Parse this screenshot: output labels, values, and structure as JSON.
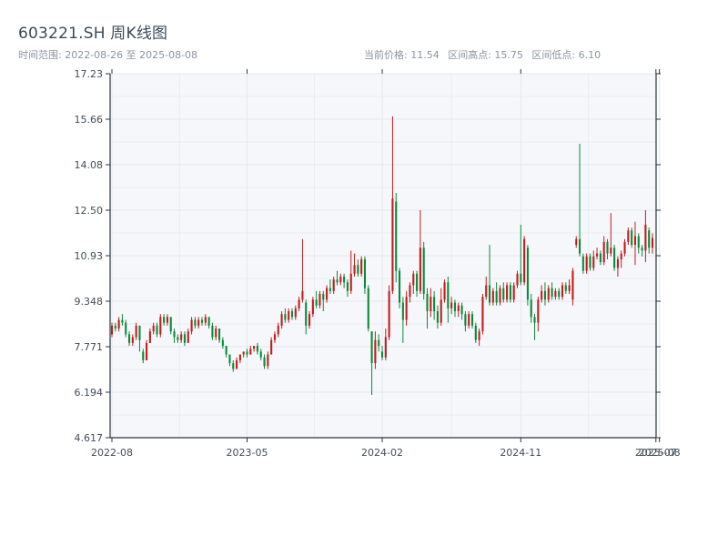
{
  "header": {
    "title": "603221.SH 周K线图",
    "range": "时间范围: 2022-08-26 至 2025-08-08",
    "current_price": "当前价格: 11.54",
    "range_high": "区间高点: 15.75",
    "range_low": "区间低点: 6.10"
  },
  "colors": {
    "up": "#c11d1d",
    "down": "#0b8a3a",
    "plot_bg": "#f5f7fa",
    "grid": "#e3e7ec",
    "axis": "#2b3440"
  },
  "chart_data": {
    "type": "candlestick",
    "title": "603221.SH 周K线图",
    "xlabel": "",
    "ylabel": "",
    "ylim": [
      4.617,
      17.23
    ],
    "yticks": [
      "4.617",
      "6.194",
      "7.771",
      "9.348",
      "10.93",
      "12.50",
      "14.08",
      "15.66",
      "17.23"
    ],
    "xticks": [
      {
        "label": "2022-08",
        "week": 0
      },
      {
        "label": "2023-05",
        "week": 39
      },
      {
        "label": "2024-02",
        "week": 78
      },
      {
        "label": "2024-11",
        "week": 118
      },
      {
        "label": "2025-07",
        "week": 157
      },
      {
        "label": "2025-08",
        "week": 158
      }
    ],
    "grid": true,
    "columns": [
      "open",
      "close",
      "high",
      "low"
    ],
    "candles": [
      [
        8.2,
        8.5,
        8.6,
        8.1
      ],
      [
        8.5,
        8.4,
        8.6,
        8.3
      ],
      [
        8.4,
        8.7,
        8.8,
        8.3
      ],
      [
        8.7,
        8.6,
        8.9,
        8.5
      ],
      [
        8.6,
        8.2,
        8.7,
        8.1
      ],
      [
        8.2,
        7.9,
        8.3,
        7.8
      ],
      [
        7.9,
        8.1,
        8.2,
        7.8
      ],
      [
        8.1,
        8.5,
        8.6,
        8.0
      ],
      [
        8.5,
        8.0,
        8.5,
        7.6
      ],
      [
        7.6,
        7.3,
        7.7,
        7.2
      ],
      [
        7.3,
        7.9,
        8.0,
        7.3
      ],
      [
        7.9,
        8.3,
        8.4,
        7.9
      ],
      [
        8.3,
        8.5,
        8.6,
        8.2
      ],
      [
        8.5,
        8.2,
        8.6,
        8.1
      ],
      [
        8.2,
        8.8,
        8.9,
        8.1
      ],
      [
        8.8,
        8.6,
        8.9,
        8.5
      ],
      [
        8.6,
        8.8,
        8.9,
        8.5
      ],
      [
        8.8,
        8.3,
        8.8,
        8.2
      ],
      [
        8.3,
        8.1,
        8.4,
        7.9
      ],
      [
        8.1,
        8.0,
        8.2,
        7.9
      ],
      [
        8.0,
        8.2,
        8.3,
        7.9
      ],
      [
        8.2,
        7.9,
        8.3,
        7.8
      ],
      [
        7.9,
        8.3,
        8.4,
        7.9
      ],
      [
        8.3,
        8.7,
        8.8,
        8.2
      ],
      [
        8.7,
        8.5,
        8.8,
        8.4
      ],
      [
        8.5,
        8.7,
        8.8,
        8.4
      ],
      [
        8.7,
        8.6,
        8.8,
        8.5
      ],
      [
        8.6,
        8.8,
        8.9,
        8.5
      ],
      [
        8.8,
        8.5,
        8.8,
        8.4
      ],
      [
        8.5,
        8.1,
        8.6,
        8.0
      ],
      [
        8.1,
        8.4,
        8.5,
        8.0
      ],
      [
        8.4,
        8.0,
        8.4,
        7.9
      ],
      [
        8.0,
        7.8,
        8.1,
        7.7
      ],
      [
        7.8,
        7.5,
        7.8,
        7.4
      ],
      [
        7.5,
        7.2,
        7.5,
        7.1
      ],
      [
        7.2,
        7.0,
        7.3,
        6.9
      ],
      [
        7.0,
        7.3,
        7.4,
        7.0
      ],
      [
        7.3,
        7.5,
        7.5,
        7.2
      ],
      [
        7.5,
        7.6,
        7.6,
        7.4
      ],
      [
        7.6,
        7.5,
        7.7,
        7.4
      ],
      [
        7.5,
        7.7,
        7.8,
        7.5
      ],
      [
        7.7,
        7.8,
        7.8,
        7.6
      ],
      [
        7.8,
        7.6,
        7.9,
        7.5
      ],
      [
        7.6,
        7.4,
        7.7,
        7.3
      ],
      [
        7.4,
        7.1,
        7.5,
        7.0
      ],
      [
        7.1,
        7.5,
        7.6,
        7.0
      ],
      [
        7.5,
        8.0,
        8.1,
        7.5
      ],
      [
        8.0,
        8.2,
        8.3,
        7.9
      ],
      [
        8.2,
        8.5,
        8.6,
        8.1
      ],
      [
        8.5,
        8.9,
        9.0,
        8.4
      ],
      [
        8.9,
        8.7,
        9.1,
        8.6
      ],
      [
        8.7,
        9.0,
        9.1,
        8.6
      ],
      [
        9.0,
        8.8,
        9.1,
        8.7
      ],
      [
        8.8,
        9.1,
        9.2,
        8.7
      ],
      [
        9.1,
        9.4,
        9.5,
        9.0
      ],
      [
        9.4,
        9.7,
        11.5,
        9.3
      ],
      [
        9.3,
        8.5,
        9.4,
        8.2
      ],
      [
        8.5,
        8.9,
        9.0,
        8.4
      ],
      [
        8.9,
        9.4,
        9.5,
        8.8
      ],
      [
        9.4,
        9.2,
        9.7,
        9.1
      ],
      [
        9.2,
        9.6,
        9.7,
        9.1
      ],
      [
        9.6,
        9.4,
        9.7,
        9.0
      ],
      [
        9.4,
        9.8,
        9.9,
        9.3
      ],
      [
        9.8,
        9.7,
        10.1,
        9.6
      ],
      [
        9.7,
        10.1,
        10.2,
        9.6
      ],
      [
        10.1,
        10.0,
        10.4,
        9.9
      ],
      [
        10.0,
        10.2,
        10.3,
        9.9
      ],
      [
        10.2,
        10.0,
        10.3,
        9.8
      ],
      [
        10.0,
        9.7,
        10.1,
        9.5
      ],
      [
        9.7,
        10.3,
        11.1,
        9.6
      ],
      [
        10.3,
        10.6,
        11.0,
        10.2
      ],
      [
        10.6,
        10.3,
        10.8,
        10.2
      ],
      [
        10.3,
        10.8,
        10.9,
        10.2
      ],
      [
        10.8,
        9.8,
        10.9,
        9.6
      ],
      [
        9.8,
        8.4,
        9.9,
        8.3
      ],
      [
        8.3,
        7.2,
        8.3,
        6.1
      ],
      [
        7.2,
        8.0,
        8.3,
        7.0
      ],
      [
        8.0,
        7.8,
        8.2,
        7.6
      ],
      [
        7.6,
        7.4,
        7.8,
        7.3
      ],
      [
        7.4,
        8.1,
        8.4,
        7.3
      ],
      [
        8.1,
        9.7,
        9.9,
        8.0
      ],
      [
        9.7,
        12.9,
        15.75,
        9.6
      ],
      [
        12.8,
        10.4,
        13.1,
        10.0
      ],
      [
        10.4,
        9.3,
        10.5,
        9.1
      ],
      [
        9.3,
        8.7,
        9.5,
        7.9
      ],
      [
        8.7,
        9.5,
        9.7,
        8.5
      ],
      [
        9.5,
        9.9,
        10.0,
        9.3
      ],
      [
        9.9,
        10.3,
        10.4,
        9.6
      ],
      [
        10.3,
        9.7,
        10.4,
        9.5
      ],
      [
        9.7,
        11.2,
        12.5,
        9.6
      ],
      [
        11.2,
        9.6,
        11.4,
        9.4
      ],
      [
        9.6,
        9.0,
        9.8,
        8.4
      ],
      [
        9.0,
        9.5,
        9.8,
        8.8
      ],
      [
        9.5,
        9.0,
        9.7,
        8.7
      ],
      [
        9.0,
        8.6,
        9.2,
        8.4
      ],
      [
        8.6,
        9.4,
        9.8,
        8.5
      ],
      [
        9.4,
        10.0,
        10.1,
        9.3
      ],
      [
        10.0,
        9.1,
        10.2,
        8.6
      ],
      [
        9.1,
        9.3,
        9.5,
        8.9
      ],
      [
        9.3,
        9.0,
        9.4,
        8.8
      ],
      [
        9.0,
        9.2,
        9.3,
        8.8
      ],
      [
        9.2,
        8.9,
        9.3,
        8.7
      ],
      [
        8.9,
        8.5,
        9.0,
        8.3
      ],
      [
        8.5,
        8.9,
        9.0,
        8.4
      ],
      [
        8.9,
        8.5,
        9.0,
        8.4
      ],
      [
        8.5,
        8.0,
        8.6,
        7.9
      ],
      [
        8.0,
        8.3,
        8.4,
        7.8
      ],
      [
        8.3,
        9.5,
        9.6,
        8.2
      ],
      [
        9.5,
        9.9,
        10.2,
        9.4
      ],
      [
        9.9,
        9.3,
        11.3,
        9.2
      ],
      [
        9.3,
        9.7,
        9.8,
        9.2
      ],
      [
        9.7,
        9.3,
        10.0,
        9.2
      ],
      [
        9.3,
        9.8,
        9.9,
        9.2
      ],
      [
        9.8,
        9.4,
        10.0,
        9.3
      ],
      [
        9.4,
        9.9,
        10.0,
        9.3
      ],
      [
        9.9,
        9.4,
        10.0,
        9.3
      ],
      [
        9.4,
        9.9,
        10.0,
        9.3
      ],
      [
        9.9,
        10.3,
        10.4,
        9.8
      ],
      [
        10.3,
        10.0,
        12.0,
        9.9
      ],
      [
        10.0,
        11.5,
        11.6,
        9.9
      ],
      [
        11.2,
        9.4,
        11.3,
        9.2
      ],
      [
        9.4,
        8.8,
        9.6,
        8.6
      ],
      [
        8.8,
        8.6,
        8.9,
        8.0
      ],
      [
        8.6,
        9.4,
        9.5,
        8.3
      ],
      [
        9.4,
        9.7,
        9.9,
        9.3
      ],
      [
        9.7,
        9.4,
        10.0,
        9.2
      ],
      [
        9.4,
        9.8,
        9.9,
        9.3
      ],
      [
        9.8,
        9.5,
        10.0,
        9.4
      ],
      [
        9.5,
        9.7,
        9.8,
        9.4
      ],
      [
        9.7,
        9.5,
        9.8,
        9.4
      ],
      [
        9.5,
        9.9,
        10.0,
        9.4
      ],
      [
        9.9,
        9.7,
        10.0,
        9.6
      ],
      [
        9.7,
        9.9,
        10.1,
        9.6
      ],
      [
        9.4,
        10.4,
        10.5,
        9.2
      ],
      [
        11.3,
        11.5,
        11.6,
        11.2
      ],
      [
        11.5,
        11.0,
        14.8,
        10.9
      ],
      [
        10.9,
        10.4,
        11.0,
        10.3
      ],
      [
        10.4,
        10.9,
        11.0,
        10.3
      ],
      [
        10.9,
        10.5,
        11.0,
        10.4
      ],
      [
        10.5,
        10.9,
        11.1,
        10.4
      ],
      [
        10.9,
        11.0,
        11.2,
        10.8
      ],
      [
        11.0,
        10.7,
        11.1,
        10.6
      ],
      [
        10.7,
        11.4,
        11.6,
        10.6
      ],
      [
        11.4,
        11.0,
        11.5,
        10.8
      ],
      [
        11.0,
        11.2,
        12.4,
        10.9
      ],
      [
        11.2,
        10.5,
        11.3,
        10.4
      ],
      [
        10.5,
        10.8,
        10.9,
        10.2
      ],
      [
        10.8,
        11.0,
        11.1,
        10.5
      ],
      [
        11.0,
        11.4,
        11.5,
        10.9
      ],
      [
        11.4,
        11.8,
        11.9,
        11.3
      ],
      [
        11.8,
        11.3,
        11.9,
        11.2
      ],
      [
        11.3,
        11.6,
        12.1,
        10.6
      ],
      [
        11.6,
        11.2,
        11.7,
        11.0
      ],
      [
        11.2,
        11.1,
        11.3,
        10.9
      ],
      [
        11.1,
        12.0,
        12.5,
        10.7
      ],
      [
        11.8,
        11.2,
        11.9,
        11.0
      ],
      [
        11.2,
        11.54,
        11.7,
        11.0
      ]
    ]
  }
}
